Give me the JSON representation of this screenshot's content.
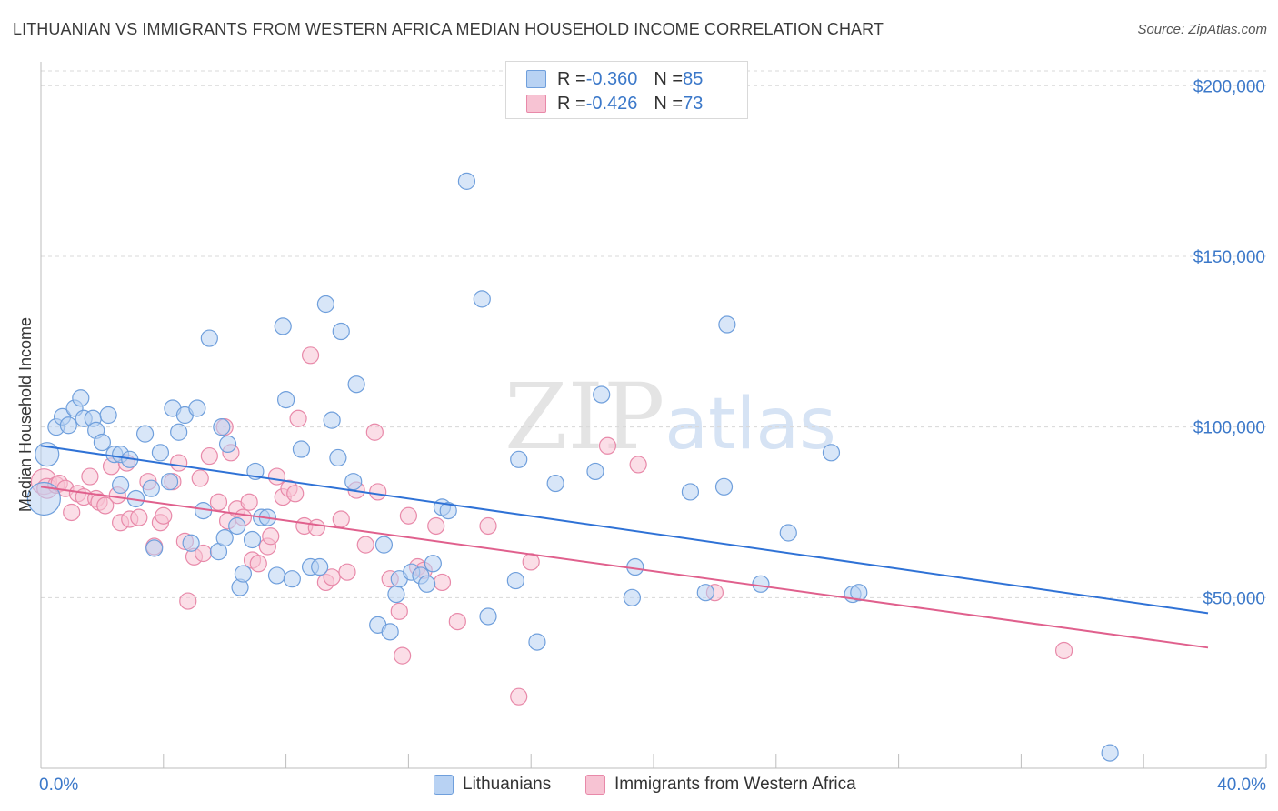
{
  "header": {
    "title": "LITHUANIAN VS IMMIGRANTS FROM WESTERN AFRICA MEDIAN HOUSEHOLD INCOME CORRELATION CHART",
    "source": "Source: ZipAtlas.com"
  },
  "watermark": {
    "zip": "ZIP",
    "atlas": "atlas"
  },
  "legend": {
    "series1": {
      "r_label": "R = ",
      "r_value": "-0.360",
      "n_label": "N = ",
      "n_value": "85"
    },
    "series2": {
      "r_label": "R = ",
      "r_value": "-0.426",
      "n_label": "N = ",
      "n_value": "73"
    }
  },
  "bottom_legend": {
    "series1": "Lithuanians",
    "series2": "Immigrants from Western Africa"
  },
  "colors": {
    "blue_fill": "#b8d2f3",
    "blue_stroke": "#6f9fdc",
    "blue_line": "#2f72d6",
    "pink_fill": "#f7c3d3",
    "pink_stroke": "#e889a9",
    "pink_line": "#e0608d",
    "tick_text": "#3b78c9",
    "grid": "#d8d8d8"
  },
  "chart_data": {
    "type": "scatter",
    "title": "LITHUANIAN VS IMMIGRANTS FROM WESTERN AFRICA MEDIAN HOUSEHOLD INCOME CORRELATION CHART",
    "xlabel": "",
    "ylabel": "Median Household Income",
    "xlim": [
      0,
      40
    ],
    "ylim": [
      0,
      207000
    ],
    "x_tick_labels": [
      "0.0%",
      "40.0%"
    ],
    "y_ticks": [
      50000,
      100000,
      150000,
      200000
    ],
    "y_tick_labels": [
      "$50,000",
      "$100,000",
      "$150,000",
      "$200,000"
    ],
    "grid": "horizontal dashed",
    "legend_position": "top-center",
    "series": [
      {
        "name": "Lithuanians",
        "r": -0.36,
        "n": 85,
        "trend": {
          "x": [
            0,
            40
          ],
          "y": [
            94500,
            43000
          ]
        },
        "points": [
          [
            0.1,
            79000,
            18
          ],
          [
            0.2,
            92000,
            13
          ],
          [
            0.5,
            100000,
            9
          ],
          [
            0.7,
            103000,
            9
          ],
          [
            0.9,
            100500,
            9
          ],
          [
            1.1,
            105500,
            9
          ],
          [
            1.3,
            108500,
            9
          ],
          [
            1.4,
            102500,
            9
          ],
          [
            1.7,
            102500,
            9
          ],
          [
            1.8,
            99000,
            9
          ],
          [
            2.0,
            95500,
            9
          ],
          [
            2.2,
            103500,
            9
          ],
          [
            2.4,
            92000,
            9
          ],
          [
            2.6,
            92000,
            9
          ],
          [
            2.9,
            90500,
            9
          ],
          [
            3.1,
            79000,
            9
          ],
          [
            3.4,
            98000,
            9
          ],
          [
            3.6,
            82000,
            9
          ],
          [
            3.7,
            64500,
            9
          ],
          [
            3.9,
            92500,
            9
          ],
          [
            4.2,
            84000,
            9
          ],
          [
            4.3,
            105500,
            9
          ],
          [
            4.5,
            98500,
            9
          ],
          [
            4.7,
            103500,
            9
          ],
          [
            4.9,
            66000,
            9
          ],
          [
            5.1,
            105500,
            9
          ],
          [
            5.3,
            75500,
            9
          ],
          [
            5.5,
            126000,
            9
          ],
          [
            5.8,
            63500,
            9
          ],
          [
            5.9,
            100000,
            9
          ],
          [
            6.0,
            67500,
            9
          ],
          [
            6.1,
            95000,
            9
          ],
          [
            6.4,
            71000,
            9
          ],
          [
            6.5,
            53000,
            9
          ],
          [
            6.6,
            57000,
            9
          ],
          [
            6.9,
            67000,
            9
          ],
          [
            7.0,
            87000,
            9
          ],
          [
            7.2,
            73500,
            9
          ],
          [
            7.4,
            73500,
            9
          ],
          [
            7.7,
            56500,
            9
          ],
          [
            7.9,
            129500,
            9
          ],
          [
            8.0,
            108000,
            9
          ],
          [
            8.2,
            55500,
            9
          ],
          [
            8.5,
            93500,
            9
          ],
          [
            8.8,
            59000,
            9
          ],
          [
            9.1,
            59000,
            9
          ],
          [
            9.3,
            136000,
            9
          ],
          [
            9.5,
            102000,
            9
          ],
          [
            9.7,
            91000,
            9
          ],
          [
            9.8,
            128000,
            9
          ],
          [
            10.2,
            84000,
            9
          ],
          [
            10.3,
            112500,
            9
          ],
          [
            11.0,
            42000,
            9
          ],
          [
            11.2,
            65500,
            9
          ],
          [
            11.4,
            40000,
            9
          ],
          [
            11.6,
            51000,
            9
          ],
          [
            11.7,
            55500,
            9
          ],
          [
            12.1,
            57500,
            9
          ],
          [
            12.4,
            56500,
            9
          ],
          [
            12.6,
            54000,
            9
          ],
          [
            12.8,
            60000,
            9
          ],
          [
            13.1,
            76500,
            9
          ],
          [
            13.3,
            75500,
            9
          ],
          [
            13.9,
            172000,
            9
          ],
          [
            14.4,
            137500,
            9
          ],
          [
            14.6,
            44500,
            9
          ],
          [
            15.5,
            55000,
            9
          ],
          [
            15.6,
            90500,
            9
          ],
          [
            16.2,
            37000,
            9
          ],
          [
            16.8,
            83500,
            9
          ],
          [
            18.1,
            87000,
            9
          ],
          [
            18.3,
            109500,
            9
          ],
          [
            19.3,
            50000,
            9
          ],
          [
            19.4,
            59000,
            9
          ],
          [
            21.2,
            81000,
            9
          ],
          [
            21.7,
            51500,
            9
          ],
          [
            22.3,
            82500,
            9
          ],
          [
            22.4,
            130000,
            9
          ],
          [
            23.5,
            54000,
            9
          ],
          [
            24.4,
            69000,
            9
          ],
          [
            25.8,
            92500,
            9
          ],
          [
            26.5,
            51000,
            9
          ],
          [
            26.7,
            51500,
            9
          ],
          [
            34.9,
            4500,
            9
          ],
          [
            2.6,
            83000,
            9
          ]
        ]
      },
      {
        "name": "Immigrants from Western Africa",
        "r": -0.426,
        "n": 73,
        "trend": {
          "x": [
            0,
            40
          ],
          "y": [
            82500,
            33000
          ]
        },
        "points": [
          [
            0.1,
            84000,
            14
          ],
          [
            0.2,
            82000,
            11
          ],
          [
            0.5,
            83000,
            9
          ],
          [
            0.6,
            83500,
            9
          ],
          [
            0.8,
            82000,
            9
          ],
          [
            1.0,
            75000,
            9
          ],
          [
            1.2,
            80500,
            9
          ],
          [
            1.4,
            79500,
            9
          ],
          [
            1.6,
            85500,
            9
          ],
          [
            1.8,
            79000,
            9
          ],
          [
            1.9,
            78000,
            9
          ],
          [
            2.1,
            77000,
            9
          ],
          [
            2.3,
            88500,
            9
          ],
          [
            2.5,
            80000,
            9
          ],
          [
            2.6,
            72000,
            9
          ],
          [
            2.8,
            89500,
            9
          ],
          [
            2.9,
            73000,
            9
          ],
          [
            3.2,
            73500,
            9
          ],
          [
            3.5,
            84000,
            9
          ],
          [
            3.7,
            65000,
            9
          ],
          [
            3.9,
            72000,
            9
          ],
          [
            4.0,
            74000,
            9
          ],
          [
            4.3,
            84000,
            9
          ],
          [
            4.5,
            89500,
            9
          ],
          [
            4.7,
            66500,
            9
          ],
          [
            4.8,
            49000,
            9
          ],
          [
            5.0,
            62000,
            9
          ],
          [
            5.2,
            85000,
            9
          ],
          [
            5.3,
            63000,
            9
          ],
          [
            5.5,
            91500,
            9
          ],
          [
            5.8,
            78000,
            9
          ],
          [
            6.0,
            100000,
            9
          ],
          [
            6.1,
            72500,
            9
          ],
          [
            6.2,
            92500,
            9
          ],
          [
            6.4,
            76000,
            9
          ],
          [
            6.6,
            73500,
            9
          ],
          [
            6.8,
            78000,
            9
          ],
          [
            6.9,
            61000,
            9
          ],
          [
            7.1,
            60000,
            9
          ],
          [
            7.4,
            65000,
            9
          ],
          [
            7.5,
            68000,
            9
          ],
          [
            7.7,
            85500,
            9
          ],
          [
            7.9,
            79500,
            9
          ],
          [
            8.1,
            82000,
            9
          ],
          [
            8.3,
            80500,
            9
          ],
          [
            8.4,
            102500,
            9
          ],
          [
            8.6,
            71000,
            9
          ],
          [
            8.8,
            121000,
            9
          ],
          [
            9.0,
            70500,
            9
          ],
          [
            9.3,
            54500,
            9
          ],
          [
            9.5,
            56000,
            9
          ],
          [
            9.8,
            73000,
            9
          ],
          [
            10.0,
            57500,
            9
          ],
          [
            10.3,
            81500,
            9
          ],
          [
            10.6,
            65500,
            9
          ],
          [
            10.9,
            98500,
            9
          ],
          [
            11.0,
            81000,
            9
          ],
          [
            11.4,
            55500,
            9
          ],
          [
            11.7,
            46000,
            9
          ],
          [
            11.8,
            33000,
            9
          ],
          [
            12.0,
            74000,
            9
          ],
          [
            12.3,
            59000,
            9
          ],
          [
            12.5,
            58000,
            9
          ],
          [
            12.9,
            71000,
            9
          ],
          [
            13.1,
            54500,
            9
          ],
          [
            13.6,
            43000,
            9
          ],
          [
            14.6,
            71000,
            9
          ],
          [
            15.6,
            21000,
            9
          ],
          [
            16.0,
            60500,
            9
          ],
          [
            18.5,
            94500,
            9
          ],
          [
            19.5,
            89000,
            9
          ],
          [
            22.0,
            51500,
            9
          ],
          [
            33.4,
            34500,
            9
          ]
        ]
      }
    ]
  }
}
